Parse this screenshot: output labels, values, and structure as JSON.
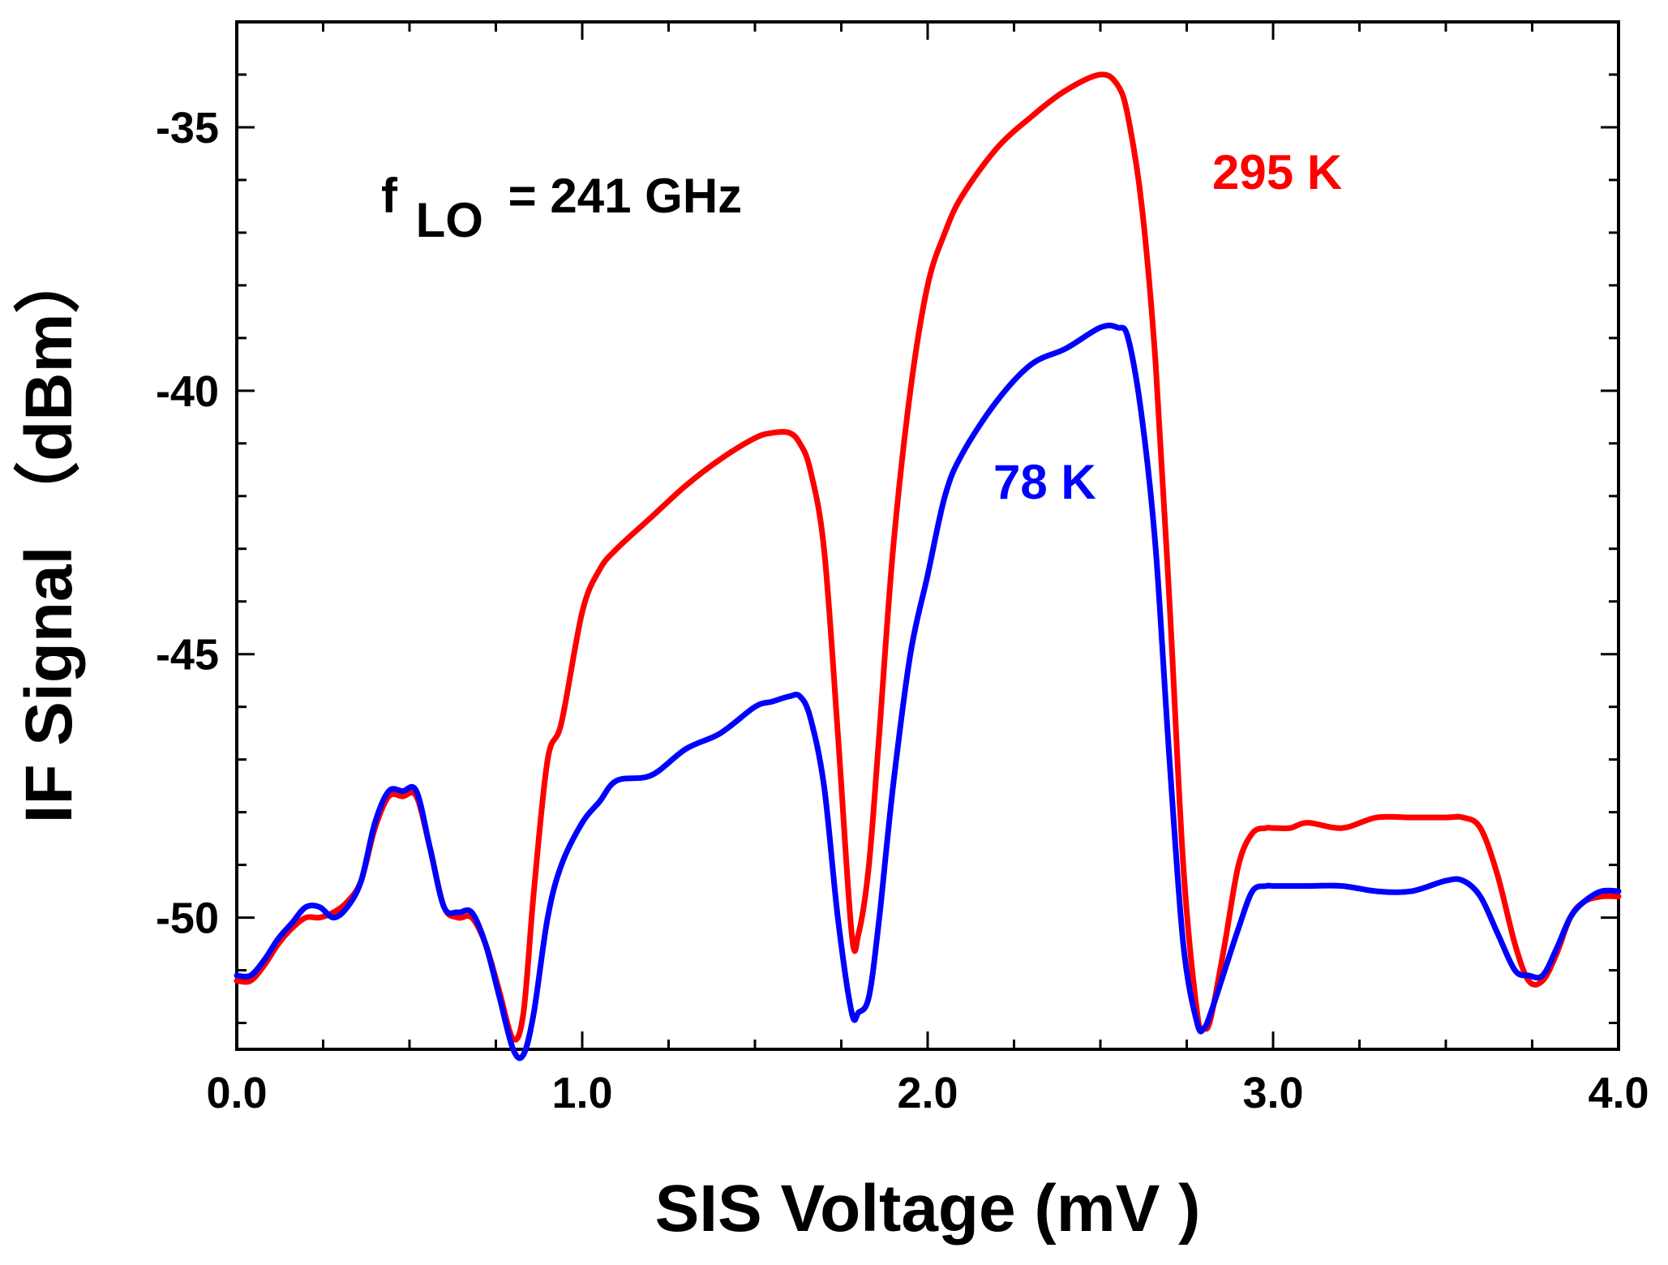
{
  "chart_data": {
    "type": "line",
    "xlabel": "SIS Voltage (mV )",
    "ylabel": "IF Signal （dBm）",
    "xlim": [
      0.0,
      4.0
    ],
    "ylim": [
      -52.5,
      -33.0
    ],
    "xticks": [
      0.0,
      1.0,
      2.0,
      3.0,
      4.0
    ],
    "xtick_labels": [
      "0.0",
      "1.0",
      "2.0",
      "3.0",
      "4.0"
    ],
    "yticks": [
      -50,
      -45,
      -40,
      -35
    ],
    "ytick_labels": [
      "-50",
      "-45",
      "-40",
      "-35"
    ],
    "grid": false,
    "annotation": {
      "prefix": "f",
      "subscript": "LO",
      "suffix": "= 241 GHz"
    },
    "series": [
      {
        "name": "295 K",
        "color": "#ff0000",
        "x": [
          0.0,
          0.04,
          0.08,
          0.12,
          0.16,
          0.2,
          0.24,
          0.28,
          0.32,
          0.36,
          0.4,
          0.44,
          0.48,
          0.52,
          0.56,
          0.6,
          0.64,
          0.68,
          0.72,
          0.76,
          0.8,
          0.83,
          0.86,
          0.9,
          0.94,
          1.0,
          1.05,
          1.1,
          1.2,
          1.3,
          1.4,
          1.5,
          1.55,
          1.6,
          1.63,
          1.66,
          1.7,
          1.74,
          1.78,
          1.8,
          1.83,
          1.86,
          1.9,
          1.95,
          2.0,
          2.05,
          2.1,
          2.2,
          2.3,
          2.4,
          2.5,
          2.55,
          2.58,
          2.62,
          2.66,
          2.7,
          2.74,
          2.78,
          2.8,
          2.82,
          2.86,
          2.9,
          2.94,
          2.98,
          3.0,
          3.05,
          3.1,
          3.2,
          3.3,
          3.4,
          3.5,
          3.55,
          3.6,
          3.65,
          3.7,
          3.74,
          3.78,
          3.82,
          3.86,
          3.9,
          3.95,
          4.0
        ],
        "y": [
          -51.2,
          -51.2,
          -50.9,
          -50.5,
          -50.2,
          -50.0,
          -50.0,
          -49.9,
          -49.7,
          -49.3,
          -48.3,
          -47.7,
          -47.7,
          -47.7,
          -48.7,
          -49.8,
          -50.0,
          -50.0,
          -50.5,
          -51.4,
          -52.3,
          -51.8,
          -49.5,
          -47.0,
          -46.3,
          -44.2,
          -43.4,
          -43.0,
          -42.4,
          -41.8,
          -41.3,
          -40.9,
          -40.8,
          -40.8,
          -41.0,
          -41.5,
          -43.0,
          -46.5,
          -50.3,
          -50.3,
          -49.0,
          -46.5,
          -43.0,
          -40.0,
          -38.0,
          -37.0,
          -36.3,
          -35.4,
          -34.8,
          -34.3,
          -34.0,
          -34.2,
          -34.8,
          -36.5,
          -39.5,
          -44.0,
          -49.0,
          -51.8,
          -52.1,
          -51.9,
          -50.5,
          -49.0,
          -48.4,
          -48.3,
          -48.3,
          -48.3,
          -48.2,
          -48.3,
          -48.1,
          -48.1,
          -48.1,
          -48.1,
          -48.3,
          -49.2,
          -50.5,
          -51.2,
          -51.2,
          -50.7,
          -50.0,
          -49.7,
          -49.6,
          -49.6
        ]
      },
      {
        "name": "78 K",
        "color": "#0000ff",
        "x": [
          0.0,
          0.04,
          0.08,
          0.12,
          0.16,
          0.2,
          0.24,
          0.28,
          0.32,
          0.36,
          0.4,
          0.44,
          0.48,
          0.52,
          0.56,
          0.6,
          0.64,
          0.68,
          0.72,
          0.76,
          0.8,
          0.83,
          0.86,
          0.9,
          0.94,
          1.0,
          1.05,
          1.1,
          1.2,
          1.3,
          1.4,
          1.5,
          1.55,
          1.6,
          1.63,
          1.66,
          1.7,
          1.74,
          1.78,
          1.8,
          1.83,
          1.86,
          1.9,
          1.95,
          2.0,
          2.05,
          2.1,
          2.2,
          2.3,
          2.4,
          2.5,
          2.55,
          2.58,
          2.62,
          2.66,
          2.7,
          2.74,
          2.78,
          2.8,
          2.82,
          2.86,
          2.9,
          2.94,
          2.98,
          3.0,
          3.05,
          3.1,
          3.2,
          3.3,
          3.4,
          3.5,
          3.55,
          3.6,
          3.65,
          3.7,
          3.74,
          3.78,
          3.82,
          3.86,
          3.9,
          3.95,
          4.0
        ],
        "y": [
          -51.1,
          -51.1,
          -50.8,
          -50.4,
          -50.1,
          -49.8,
          -49.8,
          -50.0,
          -49.8,
          -49.3,
          -48.2,
          -47.6,
          -47.6,
          -47.6,
          -48.7,
          -49.8,
          -49.9,
          -49.9,
          -50.5,
          -51.5,
          -52.5,
          -52.6,
          -51.8,
          -50.0,
          -49.0,
          -48.2,
          -47.8,
          -47.4,
          -47.3,
          -46.8,
          -46.5,
          -46.0,
          -45.9,
          -45.8,
          -45.8,
          -46.2,
          -47.5,
          -50.0,
          -51.8,
          -51.8,
          -51.5,
          -50.0,
          -47.5,
          -45.0,
          -43.5,
          -42.0,
          -41.2,
          -40.2,
          -39.5,
          -39.2,
          -38.8,
          -38.8,
          -39.0,
          -40.5,
          -43.0,
          -47.0,
          -50.5,
          -52.0,
          -52.1,
          -51.8,
          -51.0,
          -50.2,
          -49.5,
          -49.4,
          -49.4,
          -49.4,
          -49.4,
          -49.4,
          -49.5,
          -49.5,
          -49.3,
          -49.3,
          -49.6,
          -50.3,
          -51.0,
          -51.1,
          -51.1,
          -50.6,
          -50.0,
          -49.7,
          -49.5,
          -49.5
        ]
      }
    ]
  }
}
